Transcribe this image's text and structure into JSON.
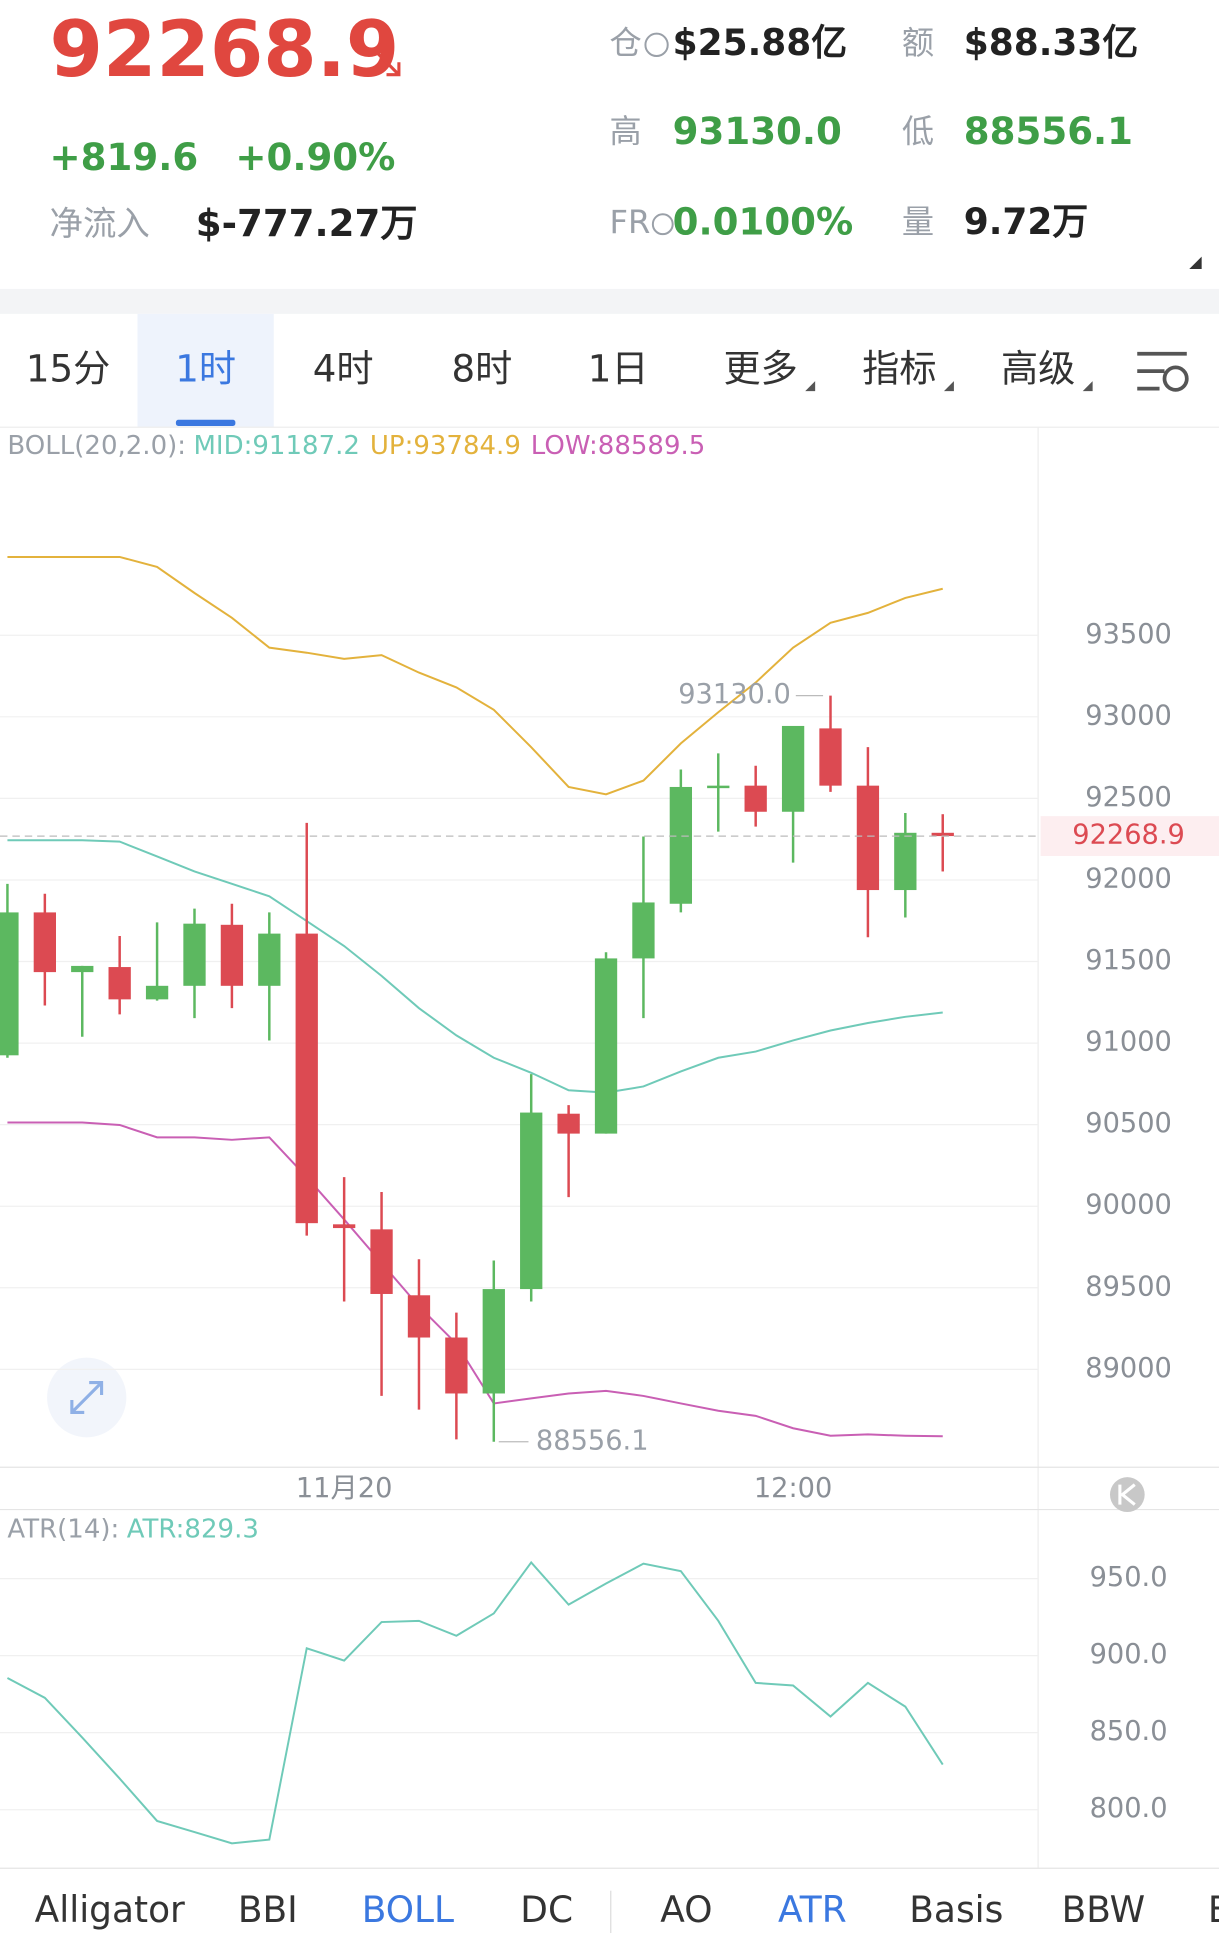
{
  "header": {
    "price": "92268.9",
    "change": "+819.6",
    "change_pct": "+0.90%",
    "net_flow_label": "净流入",
    "net_flow": "$-777.27万",
    "stats": [
      {
        "label": "仓",
        "value": "$25.88亿"
      },
      {
        "label": "额",
        "value": "$88.33亿"
      },
      {
        "label": "高",
        "value": "93130.0"
      },
      {
        "label": "低",
        "value": "88556.1"
      },
      {
        "label": "FR",
        "value": "0.0100%"
      },
      {
        "label": "量",
        "value": "9.72万"
      }
    ]
  },
  "tabs": [
    "15分",
    "1时",
    "4时",
    "8时",
    "1日",
    "更多",
    "指标",
    "高级"
  ],
  "active_tab": 1,
  "indicators": [
    "Alligator",
    "BBI",
    "BOLL",
    "DC",
    "AO",
    "ATR",
    "Basis",
    "BBW",
    "E"
  ],
  "active_indicators": [
    2,
    5
  ],
  "chart_data": [
    {
      "type": "candlestick",
      "legend": {
        "title": "BOLL(20,2.0):",
        "items": [
          "MID:91187.2",
          "UP:93784.9",
          "LOW:88589.5"
        ]
      },
      "categories": [
        null,
        null,
        null,
        null,
        null,
        null,
        null,
        null,
        null,
        "11月20",
        null,
        null,
        null,
        null,
        null,
        null,
        null,
        null,
        null,
        null,
        null,
        "12:00",
        null,
        null,
        null,
        null
      ],
      "up_color": "#5cb860",
      "down_color": "#dc4a52",
      "ohlc": {
        "open": [
          90925,
          91801,
          91435,
          91466,
          91268,
          91351,
          91725,
          91351,
          91671,
          89889,
          89858,
          89454,
          89195,
          88852,
          89492,
          90567,
          90445,
          91519,
          91854,
          92563,
          92578,
          92418,
          92929,
          92578,
          91938,
          92289
        ],
        "high": [
          91976,
          91915,
          91473,
          91656,
          91740,
          91824,
          91854,
          91801,
          92350,
          90178,
          90087,
          89675,
          89348,
          89667,
          90810,
          90620,
          91557,
          92266,
          92677,
          92776,
          92700,
          92944,
          93130.0,
          92814,
          92410,
          92403
        ],
        "low": [
          90910,
          91230,
          91039,
          91176,
          91260,
          91153,
          91214,
          91016,
          89820,
          89416,
          88837,
          88753,
          88571,
          88556.1,
          89416,
          90056,
          90445,
          91153,
          91801,
          92296,
          92327,
          92106,
          92540,
          91649,
          91770,
          92052
        ],
        "close": [
          91801,
          91435,
          91473,
          91268,
          91351,
          91732,
          91351,
          91671,
          89896,
          89866,
          89462,
          89195,
          88852,
          89492,
          90574,
          90445,
          91519,
          91862,
          92570,
          92578,
          92418,
          92944,
          92578,
          91938,
          92289,
          92268.9
        ]
      },
      "bands": [
        {
          "color": "#6fcab8",
          "values": [
            92243,
            92243,
            92243,
            92235,
            92144,
            92052,
            91976,
            91900,
            91748,
            91595,
            91412,
            91214,
            91047,
            90910,
            90818,
            90711,
            90696,
            90734,
            90826,
            90910,
            90948,
            91016,
            91077,
            91123,
            91161,
            91187.2
          ]
        },
        {
          "color": "#e3b23c",
          "values": [
            93980,
            93980,
            93980,
            93980,
            93919,
            93759,
            93607,
            93424,
            93393,
            93355,
            93378,
            93271,
            93180,
            93043,
            92814,
            92570,
            92525,
            92609,
            92837,
            93028,
            93210,
            93424,
            93576,
            93637,
            93729,
            93784.9
          ]
        },
        {
          "color": "#c95fb4",
          "values": [
            90513,
            90513,
            90513,
            90498,
            90422,
            90422,
            90407,
            90422,
            90178,
            89919,
            89652,
            89386,
            89157,
            88791,
            88822,
            88852,
            88868,
            88837,
            88791,
            88746,
            88715,
            88639,
            88593,
            88601,
            88593,
            88589.5
          ]
        }
      ],
      "last_price": 92268.9,
      "annotations": [
        "93130.0",
        "88556.1"
      ],
      "ylim": [
        88400,
        94760
      ],
      "yticks": [
        93500,
        93000,
        92500,
        92000,
        91500,
        91000,
        90500,
        90000,
        89500,
        89000
      ],
      "grid": true
    },
    {
      "type": "line",
      "legend": {
        "title": "ATR(14):",
        "items": [
          "ATR:829.3"
        ]
      },
      "series": [
        {
          "color": "#6fcab8",
          "values": [
            885.5,
            872.6,
            846.8,
            820.2,
            792.7,
            785.5,
            778.2,
            780.6,
            904.8,
            896.8,
            921.8,
            922.6,
            912.9,
            927.4,
            960.5,
            933.1,
            946.8,
            959.7,
            954.8,
            922.6,
            882.3,
            880.6,
            860.5,
            882.3,
            866.9,
            829.3
          ]
        }
      ],
      "ylim": [
        762,
        994
      ],
      "yticks": [
        {
          "value": 950,
          "label": "950.0"
        },
        {
          "value": 900,
          "label": "900.0"
        },
        {
          "value": 850,
          "label": "850.0"
        },
        {
          "value": 800,
          "label": "800.0"
        }
      ],
      "grid": true
    }
  ]
}
